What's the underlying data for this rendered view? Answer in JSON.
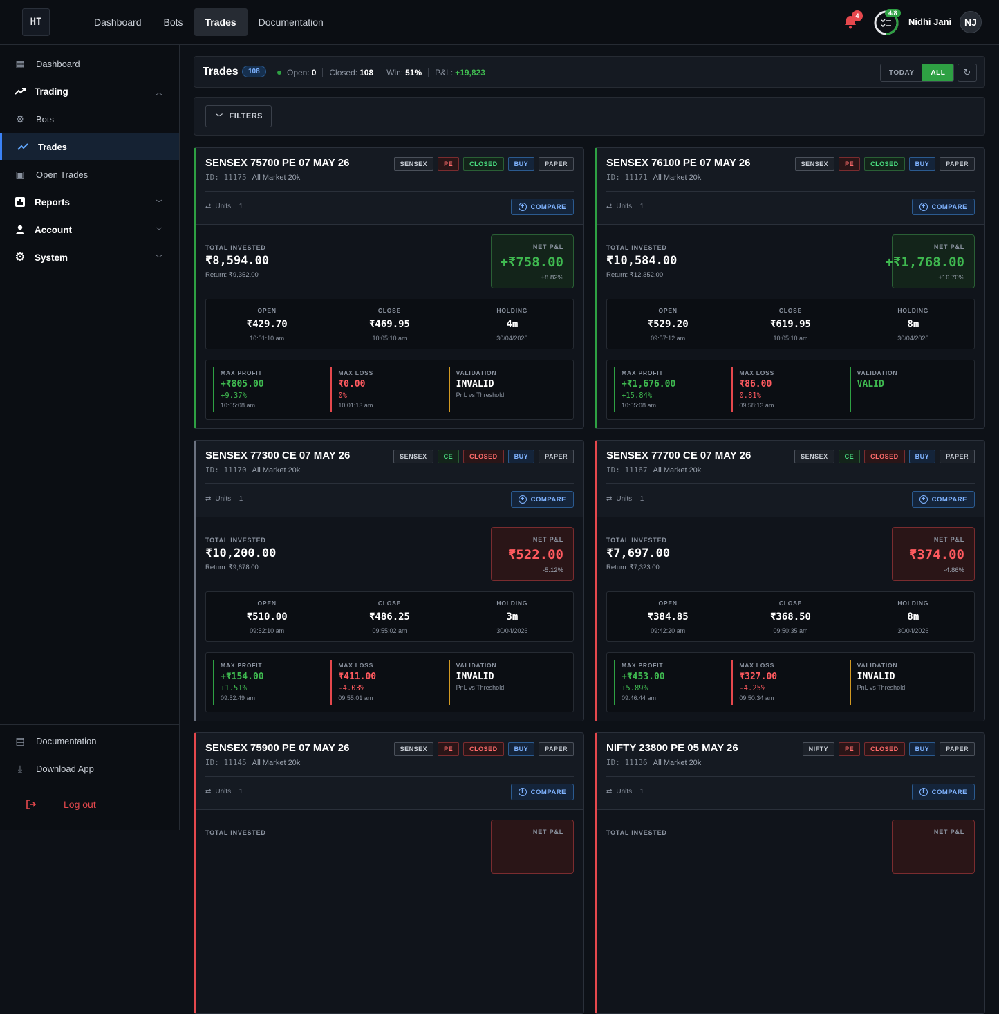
{
  "topbar": {
    "logo": "HT",
    "nav": [
      "Dashboard",
      "Bots",
      "Trades",
      "Documentation"
    ],
    "active_nav": 2,
    "notif_count": "4",
    "progress": "4/8",
    "progress_fraction": 0.5,
    "user_name": "Nidhi Jani",
    "user_initials": "NJ"
  },
  "sidebar": {
    "items": [
      {
        "label": "Dashboard",
        "icon": "grid-icon"
      },
      {
        "label": "Trading",
        "icon": "trend-icon"
      },
      {
        "label": "Bots",
        "icon": "robot-icon"
      },
      {
        "label": "Trades",
        "icon": "trend-icon"
      },
      {
        "label": "Open Trades",
        "icon": "wallet-icon"
      },
      {
        "label": "Reports",
        "icon": "chart-icon"
      },
      {
        "label": "Account",
        "icon": "person-icon"
      },
      {
        "label": "System",
        "icon": "gear-icon"
      }
    ],
    "footer": {
      "documentation": "Documentation",
      "download": "Download App",
      "logout": "Log out"
    }
  },
  "summary": {
    "title": "Trades",
    "count": "108",
    "open_label": "Open:",
    "open_value": "0",
    "closed_label": "Closed:",
    "closed_value": "108",
    "win_label": "Win:",
    "win_value": "51%",
    "pnl_label": "P&L:",
    "pnl_value": "+19,823",
    "today": "TODAY",
    "all": "ALL"
  },
  "filters": {
    "label": "FILTERS"
  },
  "labels": {
    "compare": "COMPARE",
    "total_invested": "TOTAL INVESTED",
    "net_pnl": "NET P&L",
    "open": "OPEN",
    "close": "CLOSE",
    "holding": "HOLDING",
    "max_profit": "MAX PROFIT",
    "max_loss": "MAX LOSS",
    "validation": "VALIDATION",
    "units_prefix": "Units: "
  },
  "trades": [
    {
      "symbol": "SENSEX 75700 PE 07 MAY 26",
      "id": "ID: 11175",
      "bot": "All Market 20k",
      "tags": [
        "SENSEX",
        "PE",
        "CLOSED",
        "BUY",
        "PAPER"
      ],
      "status_color": "green",
      "units": "1",
      "invested": "₹8,594.00",
      "return": "Return: ₹9,352.00",
      "net_pnl": "+₹758.00",
      "net_pct": "+8.82%",
      "open_price": "₹429.70",
      "open_time": "10:01:10 am",
      "close_price": "₹469.95",
      "close_time": "10:05:10 am",
      "holding": "4m",
      "holding_date": "30/04/2026",
      "max_profit": "+₹805.00",
      "max_profit_pct": "+9.37%",
      "max_profit_time": "10:05:08 am",
      "max_loss": "₹0.00",
      "max_loss_pct": "0%",
      "max_loss_time": "10:01:13 am",
      "validation": "INVALID",
      "validation_note": "PnL vs Threshold"
    },
    {
      "symbol": "SENSEX 76100 PE 07 MAY 26",
      "id": "ID: 11171",
      "bot": "All Market 20k",
      "tags": [
        "SENSEX",
        "PE",
        "CLOSED",
        "BUY",
        "PAPER"
      ],
      "status_color": "green",
      "units": "1",
      "invested": "₹10,584.00",
      "return": "Return: ₹12,352.00",
      "net_pnl": "+₹1,768.00",
      "net_pct": "+16.70%",
      "open_price": "₹529.20",
      "open_time": "09:57:12 am",
      "close_price": "₹619.95",
      "close_time": "10:05:10 am",
      "holding": "8m",
      "holding_date": "30/04/2026",
      "max_profit": "+₹1,676.00",
      "max_profit_pct": "+15.84%",
      "max_profit_time": "10:05:08 am",
      "max_loss": "₹86.00",
      "max_loss_pct": "0.81%",
      "max_loss_time": "09:58:13 am",
      "validation": "VALID",
      "validation_note": ""
    },
    {
      "symbol": "SENSEX 77300 CE 07 MAY 26",
      "id": "ID: 11170",
      "bot": "All Market 20k",
      "tags": [
        "SENSEX",
        "CE",
        "CLOSED",
        "BUY",
        "PAPER"
      ],
      "status_color": "gray",
      "units": "1",
      "invested": "₹10,200.00",
      "return": "Return: ₹9,678.00",
      "net_pnl": "₹522.00",
      "net_pct": "-5.12%",
      "open_price": "₹510.00",
      "open_time": "09:52:10 am",
      "close_price": "₹486.25",
      "close_time": "09:55:02 am",
      "holding": "3m",
      "holding_date": "30/04/2026",
      "max_profit": "+₹154.00",
      "max_profit_pct": "+1.51%",
      "max_profit_time": "09:52:49 am",
      "max_loss": "₹411.00",
      "max_loss_pct": "-4.03%",
      "max_loss_time": "09:55:01 am",
      "validation": "INVALID",
      "validation_note": "PnL vs Threshold"
    },
    {
      "symbol": "SENSEX 77700 CE 07 MAY 26",
      "id": "ID: 11167",
      "bot": "All Market 20k",
      "tags": [
        "SENSEX",
        "CE",
        "CLOSED",
        "BUY",
        "PAPER"
      ],
      "status_color": "red",
      "units": "1",
      "invested": "₹7,697.00",
      "return": "Return: ₹7,323.00",
      "net_pnl": "₹374.00",
      "net_pct": "-4.86%",
      "open_price": "₹384.85",
      "open_time": "09:42:20 am",
      "close_price": "₹368.50",
      "close_time": "09:50:35 am",
      "holding": "8m",
      "holding_date": "30/04/2026",
      "max_profit": "+₹453.00",
      "max_profit_pct": "+5.89%",
      "max_profit_time": "09:46:44 am",
      "max_loss": "₹327.00",
      "max_loss_pct": "-4.25%",
      "max_loss_time": "09:50:34 am",
      "validation": "INVALID",
      "validation_note": "PnL vs Threshold"
    },
    {
      "symbol": "SENSEX 75900 PE 07 MAY 26",
      "id": "ID: 11145",
      "bot": "All Market 20k",
      "tags": [
        "SENSEX",
        "PE",
        "CLOSED",
        "BUY",
        "PAPER"
      ],
      "status_color": "red",
      "units": "1"
    },
    {
      "symbol": "NIFTY 23800 PE 05 MAY 26",
      "id": "ID: 11136",
      "bot": "All Market 20k",
      "tags": [
        "NIFTY",
        "PE",
        "CLOSED",
        "BUY",
        "PAPER"
      ],
      "status_color": "red",
      "units": "1"
    }
  ]
}
